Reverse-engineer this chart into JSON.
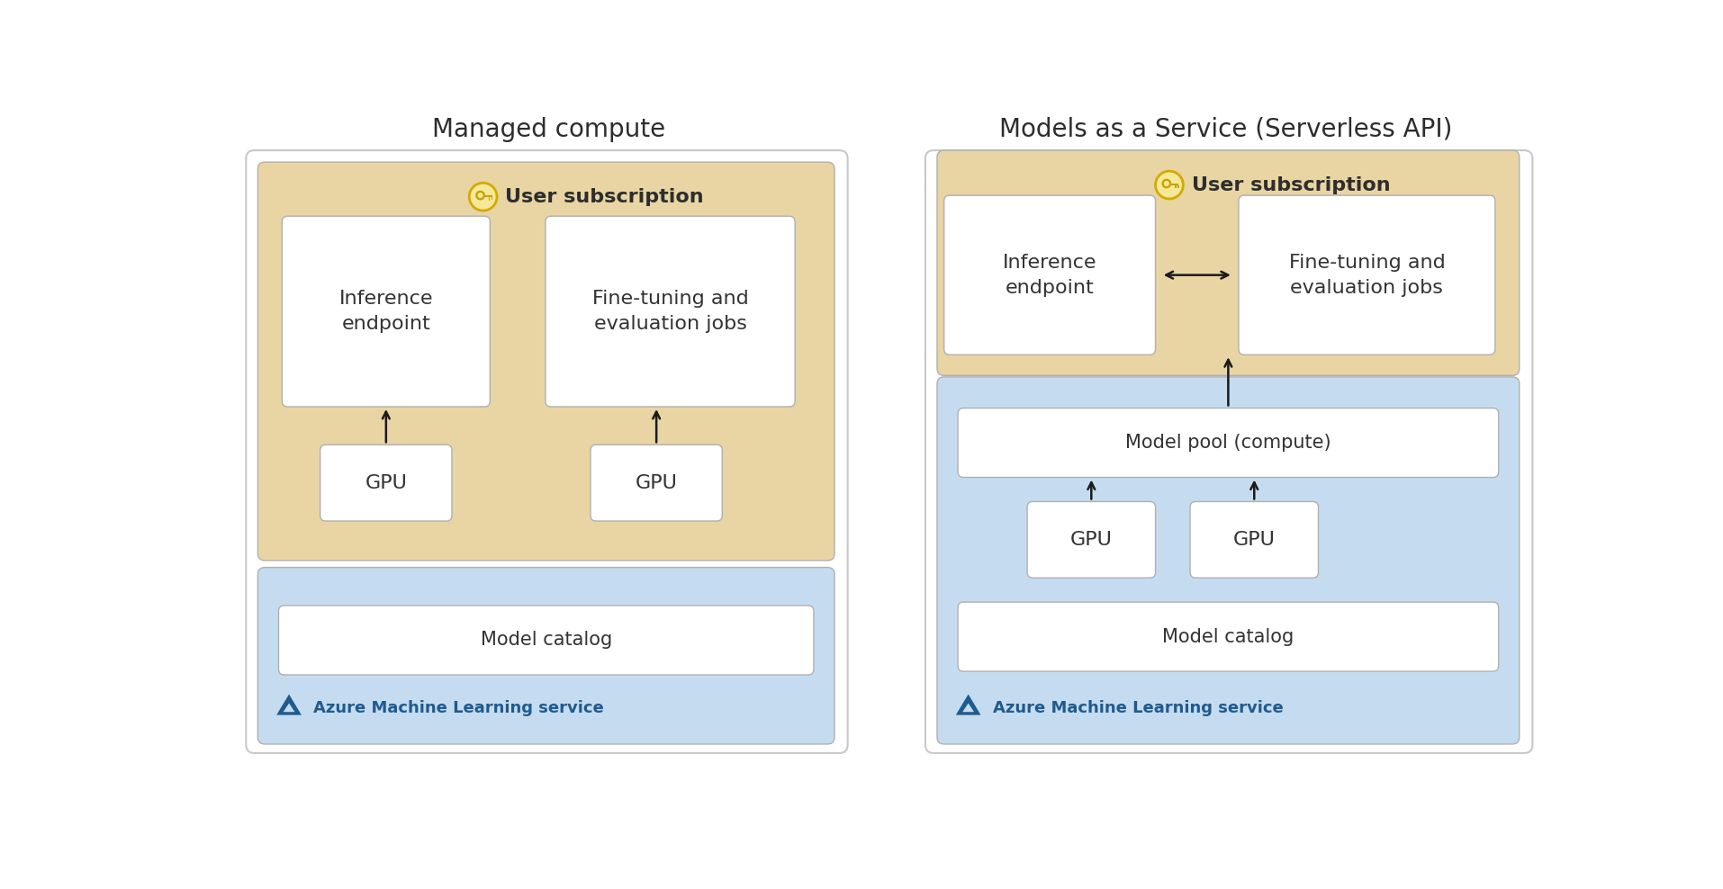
{
  "fig_width": 19.14,
  "fig_height": 9.88,
  "bg_color": "#ffffff",
  "title_left": "Managed compute",
  "title_right": "Models as a Service (Serverless API)",
  "title_fontsize": 20,
  "title_color": "#2d2d2d",
  "tan_color": "#E8D5A3",
  "blue_color": "#C5DCF0",
  "white_box_color": "#ffffff",
  "box_edge_color": "#b0b0b0",
  "outer_border_color": "#c8c8c8",
  "azure_icon_color": "#1f5b8e",
  "key_bg": "#F5E999",
  "key_border": "#D4AA00",
  "arrow_color": "#1a1a1a",
  "user_sub_text": "User subscription",
  "inference_text": "Inference\nendpoint",
  "finetuning_text": "Fine-tuning and\nevaluation jobs",
  "gpu_text": "GPU",
  "model_catalog_text": "Model catalog",
  "azure_text": "Azure Machine Learning service",
  "model_pool_text": "Model pool (compute)"
}
